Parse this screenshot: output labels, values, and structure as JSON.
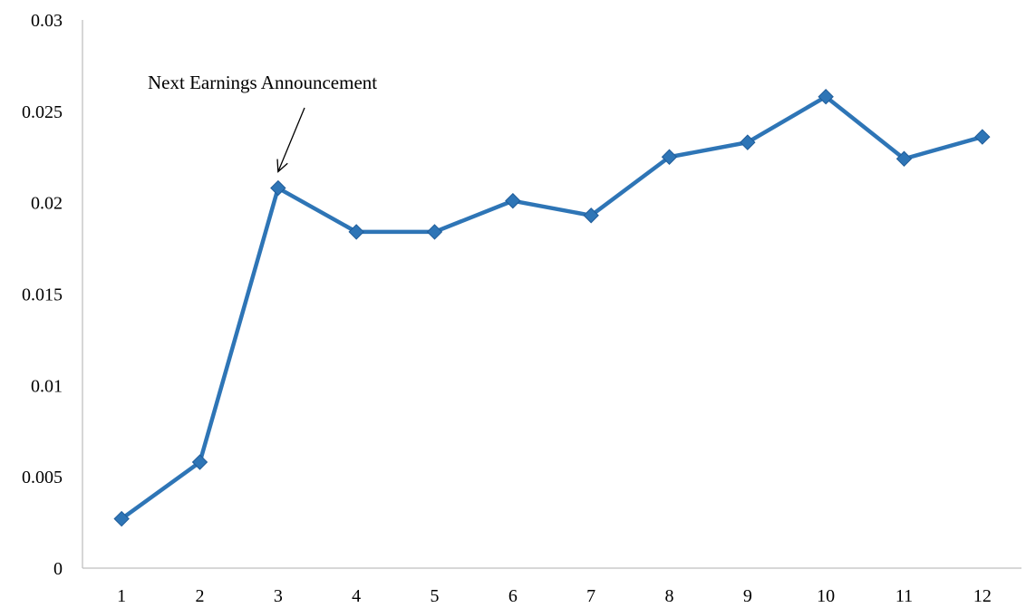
{
  "chart_data": {
    "type": "line",
    "title": "",
    "xlabel": "",
    "ylabel": "",
    "categories": [
      "1",
      "2",
      "3",
      "4",
      "5",
      "6",
      "7",
      "8",
      "9",
      "10",
      "11",
      "12"
    ],
    "series": [
      {
        "values": [
          0.0027,
          0.0058,
          0.0208,
          0.0184,
          0.0184,
          0.0201,
          0.0193,
          0.0225,
          0.0233,
          0.0258,
          0.0224,
          0.0236
        ],
        "color": "#2E75B6",
        "marker": "diamond"
      }
    ],
    "ylim": [
      0,
      0.03
    ],
    "yticks": [
      "0",
      "0.005",
      "0.01",
      "0.015",
      "0.02",
      "0.025",
      "0.03"
    ],
    "grid": false,
    "legend": "none",
    "annotations": [
      {
        "text": "Next Earnings Announcement",
        "points_to_category": "3"
      }
    ]
  }
}
